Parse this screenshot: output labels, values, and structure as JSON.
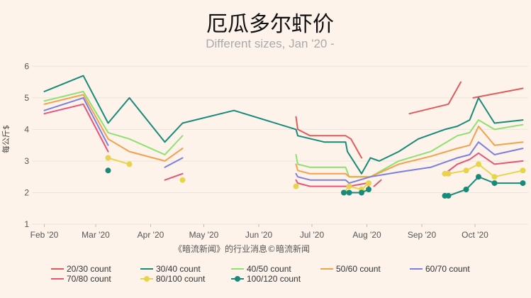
{
  "chart_data": {
    "type": "line",
    "title": "厄瓜多尔虾价",
    "subtitle": "Different sizes, Jan '20 -",
    "ylabel": "每公斤$",
    "source": "《暗流新闻》的行业消息©暗流新闻",
    "ylim": [
      1,
      6.3
    ],
    "xlim": [
      "2020-01-25",
      "2020-10-31"
    ],
    "y_ticks": [
      1,
      2,
      3,
      4,
      5,
      6
    ],
    "x_ticks": [
      {
        "date": "2020-02-01",
        "label": "Feb '20"
      },
      {
        "date": "2020-03-01",
        "label": "Mar '20"
      },
      {
        "date": "2020-04-01",
        "label": "Apr '20"
      },
      {
        "date": "2020-05-01",
        "label": "May '20"
      },
      {
        "date": "2020-06-01",
        "label": "Jun '20"
      },
      {
        "date": "2020-07-01",
        "label": "Jul '20"
      },
      {
        "date": "2020-08-01",
        "label": "Aug '20"
      },
      {
        "date": "2020-09-01",
        "label": "Sep '20"
      },
      {
        "date": "2020-10-01",
        "label": "Oct '20"
      }
    ],
    "grid": true,
    "legend_position": "bottom",
    "series": [
      {
        "name": "20/30 count",
        "color": "#e05c5c",
        "marker": "line",
        "segments": [
          [
            [
              "2020-06-22",
              4.4
            ],
            [
              "2020-06-23",
              4.0
            ],
            [
              "2020-06-30",
              3.8
            ],
            [
              "2020-07-20",
              3.8
            ],
            [
              "2020-07-23",
              3.7
            ],
            [
              "2020-07-29",
              3.1
            ]
          ],
          [
            [
              "2020-08-25",
              4.5
            ],
            [
              "2020-09-16",
              4.8
            ],
            [
              "2020-09-23",
              5.5
            ]
          ],
          [
            [
              "2020-09-30",
              5.0
            ],
            [
              "2020-10-28",
              5.3
            ]
          ]
        ]
      },
      {
        "name": "30/40 count",
        "color": "#178a79",
        "marker": "line",
        "segments": [
          [
            [
              "2020-02-01",
              5.2
            ],
            [
              "2020-02-23",
              5.7
            ],
            [
              "2020-03-08",
              4.2
            ],
            [
              "2020-03-20",
              5.0
            ],
            [
              "2020-04-09",
              3.6
            ],
            [
              "2020-04-19",
              4.2
            ],
            [
              "2020-05-18",
              4.6
            ],
            [
              "2020-06-22",
              4.0
            ],
            [
              "2020-06-23",
              3.8
            ],
            [
              "2020-07-08",
              3.6
            ],
            [
              "2020-07-20",
              3.6
            ],
            [
              "2020-07-21",
              3.3
            ],
            [
              "2020-07-29",
              2.6
            ],
            [
              "2020-08-03",
              3.1
            ],
            [
              "2020-08-08",
              3.0
            ],
            [
              "2020-08-19",
              3.3
            ],
            [
              "2020-08-30",
              3.7
            ],
            [
              "2020-09-14",
              4.0
            ],
            [
              "2020-09-21",
              4.1
            ],
            [
              "2020-09-28",
              4.3
            ],
            [
              "2020-10-03",
              5.0
            ],
            [
              "2020-10-12",
              4.2
            ],
            [
              "2020-10-28",
              4.3
            ]
          ]
        ]
      },
      {
        "name": "40/50 count",
        "color": "#8ee070",
        "marker": "line",
        "segments": [
          [
            [
              "2020-02-01",
              4.9
            ],
            [
              "2020-02-23",
              5.2
            ],
            [
              "2020-03-08",
              3.9
            ],
            [
              "2020-03-20",
              3.7
            ],
            [
              "2020-04-09",
              3.2
            ],
            [
              "2020-04-19",
              3.8
            ]
          ],
          [
            [
              "2020-06-22",
              3.2
            ],
            [
              "2020-06-23",
              2.9
            ],
            [
              "2020-06-30",
              2.8
            ],
            [
              "2020-07-20",
              2.8
            ],
            [
              "2020-07-22",
              2.5
            ],
            [
              "2020-08-03",
              2.5
            ],
            [
              "2020-08-19",
              3.0
            ],
            [
              "2020-09-06",
              3.3
            ],
            [
              "2020-09-21",
              3.8
            ],
            [
              "2020-09-28",
              3.9
            ],
            [
              "2020-10-03",
              4.3
            ],
            [
              "2020-10-12",
              4.0
            ],
            [
              "2020-10-28",
              4.15
            ]
          ]
        ]
      },
      {
        "name": "50/60 count",
        "color": "#f5a04e",
        "marker": "line",
        "segments": [
          [
            [
              "2020-02-01",
              4.8
            ],
            [
              "2020-02-23",
              5.1
            ],
            [
              "2020-03-08",
              3.7
            ],
            [
              "2020-03-20",
              3.3
            ],
            [
              "2020-04-09",
              3.0
            ],
            [
              "2020-04-19",
              3.4
            ]
          ],
          [
            [
              "2020-06-22",
              2.9
            ],
            [
              "2020-06-23",
              2.7
            ],
            [
              "2020-06-30",
              2.6
            ],
            [
              "2020-07-20",
              2.6
            ],
            [
              "2020-07-22",
              2.5
            ],
            [
              "2020-08-03",
              2.5
            ],
            [
              "2020-08-19",
              2.9
            ],
            [
              "2020-09-06",
              3.15
            ],
            [
              "2020-09-21",
              3.4
            ],
            [
              "2020-09-28",
              3.5
            ],
            [
              "2020-10-03",
              4.1
            ],
            [
              "2020-10-12",
              3.5
            ],
            [
              "2020-10-28",
              3.6
            ]
          ]
        ]
      },
      {
        "name": "60/70 count",
        "color": "#7b7fe0",
        "marker": "line",
        "segments": [
          [
            [
              "2020-02-01",
              4.6
            ],
            [
              "2020-02-23",
              5.0
            ],
            [
              "2020-03-08",
              3.5
            ]
          ],
          [
            [
              "2020-04-09",
              2.8
            ],
            [
              "2020-04-19",
              3.1
            ]
          ],
          [
            [
              "2020-06-22",
              2.6
            ],
            [
              "2020-06-23",
              2.5
            ],
            [
              "2020-06-30",
              2.4
            ],
            [
              "2020-07-20",
              2.4
            ],
            [
              "2020-07-22",
              2.3
            ],
            [
              "2020-08-03",
              2.5
            ],
            [
              "2020-08-19",
              2.65
            ],
            [
              "2020-09-06",
              2.8
            ],
            [
              "2020-09-21",
              3.1
            ],
            [
              "2020-09-28",
              3.2
            ],
            [
              "2020-10-03",
              3.6
            ],
            [
              "2020-10-12",
              3.2
            ],
            [
              "2020-10-28",
              3.4
            ]
          ]
        ]
      },
      {
        "name": "70/80 count",
        "color": "#e8547a",
        "marker": "line",
        "segments": [
          [
            [
              "2020-02-01",
              4.5
            ],
            [
              "2020-02-23",
              4.8
            ],
            [
              "2020-03-08",
              3.3
            ]
          ],
          [
            [
              "2020-04-09",
              2.4
            ],
            [
              "2020-04-19",
              2.6
            ]
          ],
          [
            [
              "2020-06-22",
              2.4
            ],
            [
              "2020-06-23",
              2.3
            ],
            [
              "2020-06-30",
              2.2
            ],
            [
              "2020-07-20",
              2.2
            ],
            [
              "2020-07-22",
              2.2
            ],
            [
              "2020-08-01",
              2.3
            ],
            [
              "2020-08-03",
              2.1
            ]
          ],
          [
            [
              "2020-08-05",
              2.2
            ],
            [
              "2020-08-09",
              2.4
            ]
          ],
          [
            [
              "2020-09-14",
              2.6
            ],
            [
              "2020-09-21",
              2.9
            ],
            [
              "2020-09-28",
              3.05
            ],
            [
              "2020-10-03",
              3.25
            ],
            [
              "2020-10-12",
              2.9
            ],
            [
              "2020-10-28",
              3.0
            ]
          ]
        ]
      },
      {
        "name": "80/100 count",
        "color": "#e8d44a",
        "marker": "dot-line",
        "segments": [
          [
            [
              "2020-03-08",
              3.1
            ],
            [
              "2020-03-20",
              2.9
            ]
          ],
          [
            [
              "2020-04-19",
              2.4
            ]
          ],
          [
            [
              "2020-06-22",
              2.2
            ]
          ],
          [
            [
              "2020-07-19",
              2.0
            ],
            [
              "2020-07-22",
              2.2
            ],
            [
              "2020-07-29",
              2.1
            ],
            [
              "2020-08-02",
              2.3
            ]
          ],
          [
            [
              "2020-09-14",
              2.6
            ],
            [
              "2020-09-16",
              2.6
            ],
            [
              "2020-09-26",
              2.7
            ],
            [
              "2020-10-03",
              2.9
            ],
            [
              "2020-10-12",
              2.5
            ],
            [
              "2020-10-28",
              2.7
            ]
          ]
        ]
      },
      {
        "name": "100/120 count",
        "color": "#178a79",
        "marker": "dot-line",
        "segments": [
          [
            [
              "2020-03-08",
              2.7
            ]
          ],
          [
            [
              "2020-07-19",
              2.0
            ],
            [
              "2020-07-22",
              2.0
            ],
            [
              "2020-07-29",
              2.0
            ],
            [
              "2020-08-02",
              2.1
            ]
          ],
          [
            [
              "2020-09-14",
              1.9
            ],
            [
              "2020-09-16",
              1.9
            ],
            [
              "2020-09-26",
              2.1
            ],
            [
              "2020-10-03",
              2.5
            ],
            [
              "2020-10-12",
              2.3
            ],
            [
              "2020-10-28",
              2.3
            ]
          ]
        ]
      }
    ]
  }
}
